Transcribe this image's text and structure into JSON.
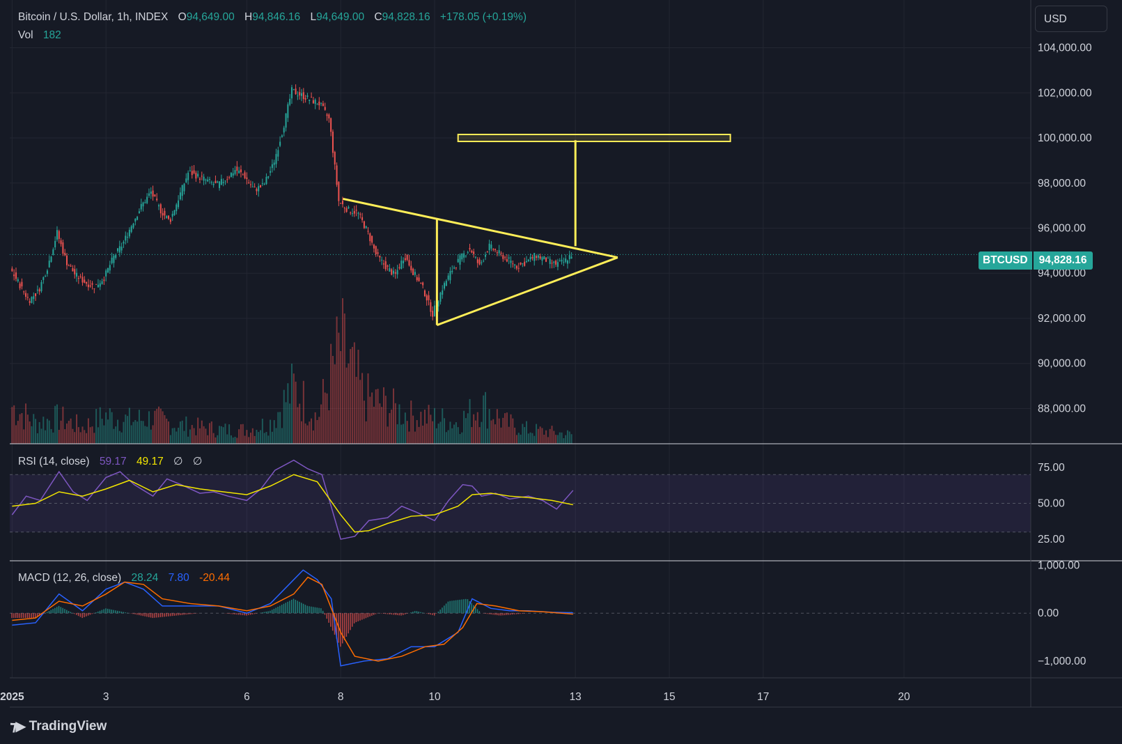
{
  "header": {
    "symbol": "Bitcoin / U.S. Dollar, 1h, INDEX",
    "o_label": "O",
    "open": "94,649.00",
    "h_label": "H",
    "high": "94,846.16",
    "l_label": "L",
    "low": "94,649.00",
    "c_label": "C",
    "close": "94,828.16",
    "change": "+178.05 (+0.19%)",
    "vol_label": "Vol",
    "vol_value": "182"
  },
  "currency_button": "USD",
  "price_tag": {
    "symbol": "BTCUSD",
    "value": "94,828.16"
  },
  "rsi_header": {
    "label": "RSI (14, close)",
    "rsi": "59.17",
    "ma": "49.17",
    "v3": "∅",
    "v4": "∅"
  },
  "macd_header": {
    "label": "MACD (12, 26, close)",
    "hist": "28.24",
    "macd": "7.80",
    "signal": "-20.44"
  },
  "logo": "TradingView",
  "colors": {
    "background": "#161a25",
    "up": "#26a69a",
    "down": "#ef5350",
    "drawing": "#ffee58",
    "rsi": "#7e57c2",
    "rsi_ma": "#f3e600",
    "macd": "#2962ff",
    "signal": "#ff6d00"
  },
  "chart_data": [
    {
      "type": "candlestick",
      "title": "Bitcoin / U.S. Dollar, 1h, INDEX",
      "y_ticks": [
        "104,000.00",
        "102,000.00",
        "100,000.00",
        "98,000.00",
        "96,000.00",
        "94,000.00",
        "92,000.00",
        "90,000.00",
        "88,000.00"
      ],
      "ylim": [
        86500,
        105500
      ],
      "x_ticks": [
        "2025",
        "3",
        "6",
        "8",
        "10",
        "13",
        "15",
        "17",
        "20"
      ],
      "x_tick_days": [
        1,
        3,
        6,
        8,
        10,
        13,
        15,
        17,
        20
      ],
      "xlim_days": [
        0.95,
        22.7
      ],
      "last_price": 94828.16,
      "series_close": [
        [
          1.0,
          94200
        ],
        [
          1.2,
          93500
        ],
        [
          1.4,
          92800
        ],
        [
          1.6,
          93200
        ],
        [
          1.8,
          94300
        ],
        [
          2.0,
          95800
        ],
        [
          2.2,
          94500
        ],
        [
          2.4,
          93900
        ],
        [
          2.6,
          93600
        ],
        [
          2.8,
          93400
        ],
        [
          3.0,
          93800
        ],
        [
          3.2,
          94700
        ],
        [
          3.4,
          95300
        ],
        [
          3.6,
          96200
        ],
        [
          3.8,
          97000
        ],
        [
          4.0,
          97600
        ],
        [
          4.2,
          96800
        ],
        [
          4.4,
          96300
        ],
        [
          4.6,
          97400
        ],
        [
          4.8,
          98500
        ],
        [
          5.0,
          98300
        ],
        [
          5.2,
          98100
        ],
        [
          5.4,
          97900
        ],
        [
          5.6,
          98200
        ],
        [
          5.8,
          98600
        ],
        [
          6.0,
          98300
        ],
        [
          6.2,
          97700
        ],
        [
          6.4,
          97900
        ],
        [
          6.6,
          98800
        ],
        [
          6.8,
          100300
        ],
        [
          7.0,
          102100
        ],
        [
          7.2,
          101900
        ],
        [
          7.4,
          101700
        ],
        [
          7.6,
          101500
        ],
        [
          7.8,
          100800
        ],
        [
          8.0,
          97200
        ],
        [
          8.2,
          96800
        ],
        [
          8.4,
          96700
        ],
        [
          8.6,
          95900
        ],
        [
          8.8,
          94800
        ],
        [
          9.0,
          94300
        ],
        [
          9.2,
          93900
        ],
        [
          9.4,
          94800
        ],
        [
          9.6,
          94000
        ],
        [
          9.8,
          93300
        ],
        [
          10.0,
          92200
        ],
        [
          10.2,
          93300
        ],
        [
          10.4,
          94100
        ],
        [
          10.6,
          94700
        ],
        [
          10.8,
          95100
        ],
        [
          11.0,
          94300
        ],
        [
          11.2,
          95200
        ],
        [
          11.4,
          94900
        ],
        [
          11.6,
          94600
        ],
        [
          11.8,
          94300
        ],
        [
          12.0,
          94500
        ],
        [
          12.2,
          94800
        ],
        [
          12.4,
          94600
        ],
        [
          12.6,
          94400
        ],
        [
          12.8,
          94500
        ],
        [
          12.95,
          94828
        ]
      ],
      "series_volume": [
        [
          1.0,
          160
        ],
        [
          1.5,
          90
        ],
        [
          2.0,
          110
        ],
        [
          2.5,
          70
        ],
        [
          3.0,
          120
        ],
        [
          3.5,
          100
        ],
        [
          4.0,
          110
        ],
        [
          4.5,
          80
        ],
        [
          5.0,
          70
        ],
        [
          5.5,
          60
        ],
        [
          6.0,
          60
        ],
        [
          6.5,
          90
        ],
        [
          7.0,
          240
        ],
        [
          7.5,
          110
        ],
        [
          8.0,
          420
        ],
        [
          8.5,
          200
        ],
        [
          9.0,
          160
        ],
        [
          9.5,
          120
        ],
        [
          10.0,
          110
        ],
        [
          10.5,
          90
        ],
        [
          11.0,
          170
        ],
        [
          11.5,
          90
        ],
        [
          12.0,
          60
        ],
        [
          12.5,
          50
        ],
        [
          12.9,
          40
        ]
      ]
    },
    {
      "type": "line",
      "title": "RSI (14, close)",
      "y_ticks": [
        "75.00",
        "50.00",
        "25.00"
      ],
      "ylim": [
        10,
        90
      ],
      "band": [
        30,
        70
      ],
      "series": [
        {
          "values": [
            [
              1.0,
              42
            ],
            [
              1.3,
              55
            ],
            [
              1.6,
              52
            ],
            [
              2.0,
              72
            ],
            [
              2.3,
              58
            ],
            [
              2.6,
              52
            ],
            [
              3.0,
              68
            ],
            [
              3.3,
              72
            ],
            [
              3.6,
              63
            ],
            [
              4.0,
              55
            ],
            [
              4.3,
              67
            ],
            [
              4.6,
              63
            ],
            [
              5.0,
              57
            ],
            [
              5.3,
              58
            ],
            [
              5.6,
              55
            ],
            [
              6.0,
              52
            ],
            [
              6.3,
              60
            ],
            [
              6.6,
              73
            ],
            [
              7.0,
              80
            ],
            [
              7.3,
              74
            ],
            [
              7.6,
              70
            ],
            [
              8.0,
              25
            ],
            [
              8.3,
              27
            ],
            [
              8.6,
              38
            ],
            [
              9.0,
              40
            ],
            [
              9.3,
              48
            ],
            [
              9.6,
              44
            ],
            [
              10.0,
              38
            ],
            [
              10.3,
              52
            ],
            [
              10.6,
              63
            ],
            [
              10.8,
              62
            ],
            [
              11.0,
              55
            ],
            [
              11.3,
              57
            ],
            [
              11.6,
              53
            ],
            [
              12.0,
              55
            ],
            [
              12.3,
              52
            ],
            [
              12.6,
              46
            ],
            [
              12.95,
              59
            ]
          ]
        },
        {
          "values": [
            [
              1.0,
              48
            ],
            [
              1.5,
              50
            ],
            [
              2.0,
              58
            ],
            [
              2.5,
              55
            ],
            [
              3.0,
              60
            ],
            [
              3.5,
              66
            ],
            [
              4.0,
              58
            ],
            [
              4.5,
              63
            ],
            [
              5.0,
              60
            ],
            [
              5.5,
              58
            ],
            [
              6.0,
              56
            ],
            [
              6.5,
              62
            ],
            [
              7.0,
              70
            ],
            [
              7.5,
              65
            ],
            [
              8.0,
              42
            ],
            [
              8.3,
              30
            ],
            [
              8.6,
              31
            ],
            [
              9.0,
              36
            ],
            [
              9.5,
              41
            ],
            [
              10.0,
              42
            ],
            [
              10.5,
              48
            ],
            [
              10.8,
              56
            ],
            [
              11.2,
              57
            ],
            [
              11.6,
              55
            ],
            [
              12.0,
              54
            ],
            [
              12.5,
              52
            ],
            [
              12.95,
              49
            ]
          ]
        }
      ]
    },
    {
      "type": "line",
      "title": "MACD (12, 26, close)",
      "y_ticks": [
        "1,000.00",
        "0.00",
        "−1,000.00"
      ],
      "ylim": [
        -1350,
        1050
      ],
      "series": [
        {
          "values": [
            [
              1.0,
              -250
            ],
            [
              1.5,
              -200
            ],
            [
              2.0,
              400
            ],
            [
              2.5,
              50
            ],
            [
              3.0,
              500
            ],
            [
              3.4,
              650
            ],
            [
              3.8,
              500
            ],
            [
              4.2,
              150
            ],
            [
              4.8,
              150
            ],
            [
              5.4,
              150
            ],
            [
              6.0,
              0
            ],
            [
              6.5,
              200
            ],
            [
              7.0,
              700
            ],
            [
              7.2,
              900
            ],
            [
              7.5,
              700
            ],
            [
              7.8,
              300
            ],
            [
              8.0,
              -1100
            ],
            [
              8.5,
              -1000
            ],
            [
              9.0,
              -950
            ],
            [
              9.5,
              -700
            ],
            [
              10.0,
              -700
            ],
            [
              10.5,
              -400
            ],
            [
              10.8,
              300
            ],
            [
              11.2,
              100
            ],
            [
              11.6,
              50
            ],
            [
              12.0,
              50
            ],
            [
              12.5,
              20
            ],
            [
              12.95,
              8
            ]
          ]
        },
        {
          "values": [
            [
              1.0,
              -150
            ],
            [
              1.5,
              -100
            ],
            [
              2.0,
              250
            ],
            [
              2.5,
              150
            ],
            [
              3.0,
              400
            ],
            [
              3.4,
              650
            ],
            [
              3.8,
              600
            ],
            [
              4.2,
              300
            ],
            [
              4.8,
              200
            ],
            [
              5.4,
              150
            ],
            [
              6.0,
              50
            ],
            [
              6.5,
              150
            ],
            [
              7.0,
              400
            ],
            [
              7.3,
              750
            ],
            [
              7.6,
              600
            ],
            [
              8.0,
              -400
            ],
            [
              8.3,
              -900
            ],
            [
              8.8,
              -1000
            ],
            [
              9.3,
              -900
            ],
            [
              9.8,
              -700
            ],
            [
              10.2,
              -650
            ],
            [
              10.6,
              -300
            ],
            [
              10.9,
              200
            ],
            [
              11.3,
              150
            ],
            [
              11.8,
              50
            ],
            [
              12.3,
              30
            ],
            [
              12.95,
              -20
            ]
          ]
        }
      ],
      "histogram": [
        [
          1.0,
          -100
        ],
        [
          1.5,
          -100
        ],
        [
          2.0,
          150
        ],
        [
          2.5,
          -100
        ],
        [
          3.0,
          100
        ],
        [
          3.5,
          0
        ],
        [
          4.0,
          -100
        ],
        [
          4.5,
          -50
        ],
        [
          5.0,
          0
        ],
        [
          5.5,
          0
        ],
        [
          6.0,
          -50
        ],
        [
          6.5,
          50
        ],
        [
          7.0,
          300
        ],
        [
          7.3,
          150
        ],
        [
          7.6,
          100
        ],
        [
          7.8,
          -300
        ],
        [
          8.0,
          -700
        ],
        [
          8.3,
          -200
        ],
        [
          8.8,
          0
        ],
        [
          9.3,
          -50
        ],
        [
          9.6,
          50
        ],
        [
          10.0,
          -50
        ],
        [
          10.3,
          250
        ],
        [
          10.7,
          300
        ],
        [
          11.0,
          0
        ],
        [
          11.4,
          -50
        ],
        [
          12.0,
          0
        ],
        [
          12.5,
          0
        ],
        [
          12.95,
          28
        ]
      ]
    }
  ],
  "drawings": {
    "target_price": 100000,
    "target_bar_days": [
      10.5,
      16.3
    ],
    "triangle_upper": [
      [
        8.05,
        97300
      ],
      [
        13.9,
        94700
      ]
    ],
    "triangle_lower": [
      [
        10.05,
        91700
      ],
      [
        13.9,
        94700
      ]
    ],
    "pole_left_day": 10.05,
    "pole_left_prices": [
      91700,
      96400
    ],
    "pole_right_day": 13.0,
    "pole_right_prices": [
      95200,
      99900
    ]
  }
}
